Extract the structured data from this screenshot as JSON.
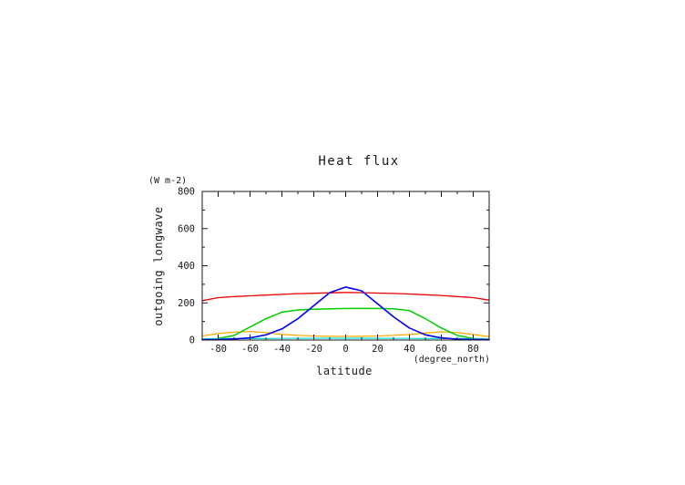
{
  "chart_data": {
    "type": "line",
    "title": "Heat flux",
    "ylabel": "outgoing longwave",
    "y_units": "(W m-2)",
    "xlabel": "latitude",
    "x_units": "(degree_north)",
    "xlim": [
      -90,
      90
    ],
    "ylim": [
      0,
      800
    ],
    "x_ticks": [
      -80,
      -60,
      -40,
      -20,
      0,
      20,
      40,
      60,
      80
    ],
    "y_ticks": [
      0,
      200,
      400,
      600,
      800
    ],
    "x_minor_step": 10,
    "y_minor_step": 100,
    "grid": false,
    "legend": "none",
    "x": [
      -90,
      -80,
      -70,
      -60,
      -50,
      -40,
      -30,
      -20,
      -10,
      0,
      10,
      20,
      30,
      40,
      50,
      60,
      70,
      80,
      90
    ],
    "series": [
      {
        "name": "red-series",
        "color": "#ee0000",
        "width": 1.3,
        "values": [
          212,
          228,
          234,
          238,
          242,
          246,
          250,
          252,
          254,
          256,
          255,
          253,
          251,
          248,
          244,
          240,
          234,
          228,
          215
        ]
      },
      {
        "name": "orange-series",
        "color": "#ffaa00",
        "width": 1.3,
        "values": [
          22,
          35,
          42,
          46,
          40,
          30,
          25,
          22,
          20,
          20,
          20,
          22,
          25,
          30,
          38,
          44,
          40,
          30,
          18
        ]
      },
      {
        "name": "green-series",
        "color": "#00d000",
        "width": 1.5,
        "values": [
          4,
          8,
          25,
          70,
          115,
          150,
          162,
          166,
          168,
          170,
          171,
          170,
          168,
          158,
          115,
          65,
          25,
          8,
          4
        ]
      },
      {
        "name": "cyan-series",
        "color": "#00dddd",
        "width": 1.2,
        "values": [
          6,
          7,
          8,
          8,
          8,
          9,
          9,
          10,
          10,
          10,
          10,
          10,
          9,
          9,
          8,
          8,
          8,
          7,
          6
        ]
      },
      {
        "name": "blue-series",
        "color": "#0000ee",
        "width": 1.6,
        "values": [
          2,
          3,
          6,
          12,
          28,
          60,
          115,
          185,
          255,
          285,
          265,
          195,
          125,
          65,
          28,
          12,
          5,
          3,
          2
        ]
      }
    ]
  },
  "layout_colors": {
    "axis": "#1a1a1a",
    "background": "#ffffff"
  }
}
